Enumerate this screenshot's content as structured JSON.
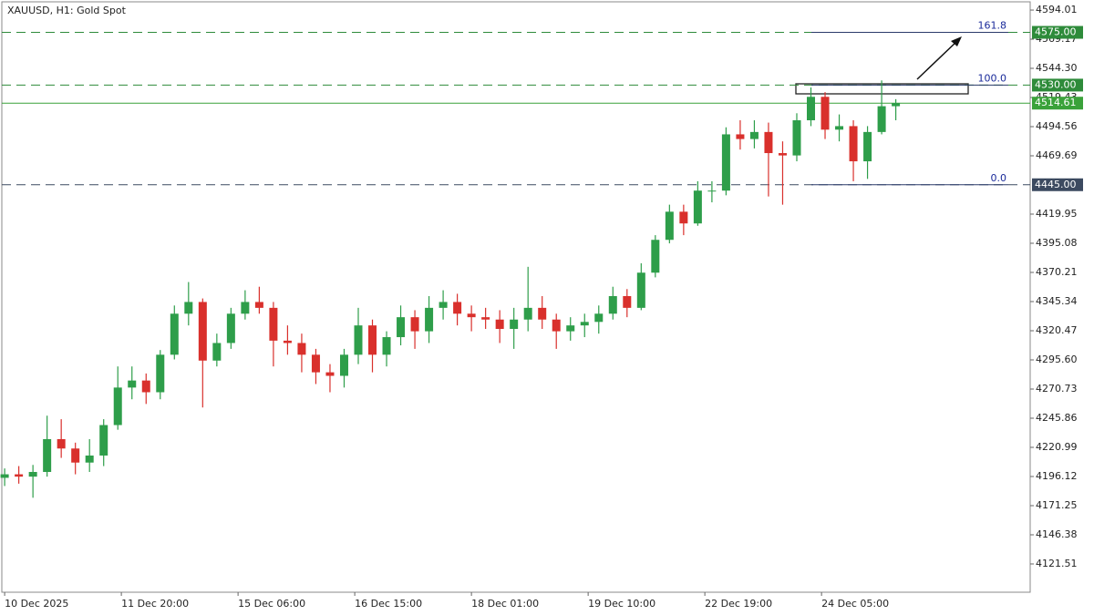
{
  "chart_data": {
    "type": "candlestick",
    "title": "XAUUSD, H1:  Gold Spot",
    "bull_color": "#2e9e4a",
    "bear_color": "#d9302c",
    "xlim": [
      -0.2,
      72.5
    ],
    "xticks": [
      {
        "value": 0,
        "label": "10 Dec 2025"
      },
      {
        "value": 8.25,
        "label": "11 Dec 20:00"
      },
      {
        "value": 16.5,
        "label": "15 Dec 06:00"
      },
      {
        "value": 24.75,
        "label": "16 Dec 15:00"
      },
      {
        "value": 33,
        "label": "18 Dec 01:00"
      },
      {
        "value": 41.25,
        "label": "19 Dec 10:00"
      },
      {
        "value": 49.5,
        "label": "22 Dec 19:00"
      },
      {
        "value": 57.75,
        "label": "24 Dec 05:00"
      }
    ],
    "ylim": [
      4097.4,
      4602.6
    ],
    "yticks": [
      4594.01,
      4569.17,
      {
        "value": 4544.3,
        "label": "4544.30"
      },
      4519.43,
      4494.56,
      4469.69,
      4419.95,
      4395.08,
      4370.21,
      4345.34,
      4320.47,
      {
        "value": 4295.6,
        "label": "4295.60"
      },
      4270.73,
      4245.86,
      4220.99,
      4196.12,
      4171.25,
      4146.38,
      4121.51
    ],
    "open": [
      4195,
      4198,
      4196,
      4200,
      4228,
      4220,
      4208,
      4214,
      4240,
      4272,
      4278,
      4268,
      4300,
      4335,
      4345,
      4295,
      4310,
      4335,
      4345,
      4340,
      4312,
      4310,
      4300,
      4285,
      4282,
      4300,
      4325,
      4300,
      4315,
      4332,
      4320,
      4340,
      4345,
      4335,
      4332,
      4330,
      4322,
      4330,
      4340,
      4330,
      4320,
      4325,
      4328,
      4335,
      4350,
      4340,
      4370,
      4398,
      4422,
      4412,
      4440,
      4440,
      4488,
      4484,
      4490,
      4472,
      4470,
      4500,
      4520,
      4492,
      4495,
      4465,
      4490,
      4512
    ],
    "high": [
      4203,
      4205,
      4206,
      4248,
      4245,
      4225,
      4228,
      4245,
      4290,
      4290,
      4284,
      4304,
      4342,
      4362,
      4348,
      4318,
      4340,
      4355,
      4358,
      4345,
      4325,
      4318,
      4305,
      4292,
      4305,
      4340,
      4330,
      4320,
      4342,
      4338,
      4350,
      4355,
      4352,
      4342,
      4340,
      4338,
      4340,
      4375,
      4350,
      4335,
      4332,
      4335,
      4342,
      4358,
      4356,
      4378,
      4402,
      4428,
      4428,
      4448,
      4448,
      4494,
      4500,
      4500,
      4498,
      4482,
      4506,
      4528,
      4524,
      4505,
      4500,
      4495,
      4534,
      4518
    ],
    "low": [
      4188,
      4190,
      4178,
      4196,
      4212,
      4198,
      4200,
      4205,
      4236,
      4262,
      4258,
      4262,
      4296,
      4325,
      4255,
      4290,
      4305,
      4330,
      4335,
      4290,
      4300,
      4285,
      4275,
      4268,
      4272,
      4292,
      4285,
      4290,
      4308,
      4305,
      4310,
      4330,
      4325,
      4320,
      4322,
      4310,
      4305,
      4320,
      4322,
      4305,
      4312,
      4315,
      4318,
      4330,
      4332,
      4338,
      4366,
      4395,
      4402,
      4410,
      4430,
      4436,
      4475,
      4476,
      4435,
      4428,
      4465,
      4495,
      4484,
      4482,
      4448,
      4450,
      4488,
      4500
    ],
    "close": [
      4198,
      4196,
      4200,
      4228,
      4220,
      4208,
      4214,
      4240,
      4272,
      4278,
      4268,
      4300,
      4335,
      4345,
      4295,
      4310,
      4335,
      4345,
      4340,
      4312,
      4310,
      4300,
      4285,
      4282,
      4300,
      4325,
      4300,
      4315,
      4332,
      4320,
      4340,
      4345,
      4335,
      4332,
      4330,
      4322,
      4330,
      4340,
      4330,
      4320,
      4325,
      4328,
      4335,
      4350,
      4340,
      4370,
      4398,
      4422,
      4412,
      4440,
      4440,
      4488,
      4484,
      4490,
      4472,
      4470,
      4500,
      4520,
      4492,
      4495,
      4465,
      4490,
      4512,
      4514.61
    ],
    "levels": [
      {
        "value": 4575,
        "label": "4575.00",
        "color": "#2e8b3a",
        "style": "dashed"
      },
      {
        "value": 4530,
        "label": "4530.00",
        "color": "#2e8b3a",
        "style": "dashed"
      },
      {
        "value": 4514.61,
        "label": "4514.61",
        "color": "#3aa23a",
        "style": "solid"
      },
      {
        "value": 4445,
        "label": "4445.00",
        "color": "#3c4a60",
        "style": "dashed"
      }
    ],
    "fib_levels": [
      {
        "value": 4575,
        "label": "161.8"
      },
      {
        "value": 4530,
        "label": "100.0"
      },
      {
        "value": 4445,
        "label": "0.0"
      }
    ]
  }
}
